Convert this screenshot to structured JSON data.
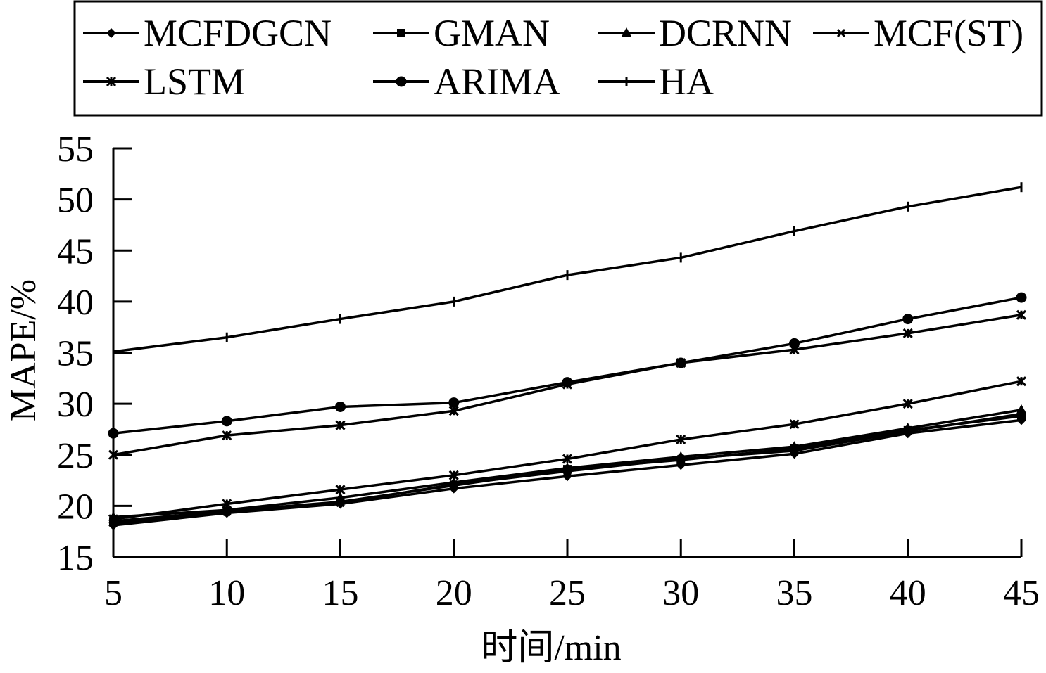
{
  "chart_data": {
    "type": "line",
    "xlabel": "时间/min",
    "ylabel": "MAPE/%",
    "x": [
      5,
      10,
      15,
      20,
      25,
      30,
      35,
      40,
      45
    ],
    "xlim": [
      5,
      45
    ],
    "ylim": [
      15,
      55
    ],
    "yticks": [
      15,
      20,
      25,
      30,
      35,
      40,
      45,
      50,
      55
    ],
    "grid": false,
    "legend_position": "top",
    "line_color": "#000000",
    "series": [
      {
        "name": "MCFDGCN",
        "marker": "diamond",
        "values": [
          18.1,
          19.3,
          20.2,
          21.7,
          22.9,
          24.0,
          25.1,
          27.1,
          28.4
        ]
      },
      {
        "name": "GMAN",
        "marker": "square",
        "values": [
          18.5,
          19.5,
          20.4,
          22.0,
          23.6,
          24.5,
          25.6,
          27.4,
          28.8
        ]
      },
      {
        "name": "DCRNN",
        "marker": "triangle",
        "values": [
          18.9,
          19.6,
          20.8,
          22.3,
          23.7,
          24.8,
          25.8,
          27.6,
          29.4
        ]
      },
      {
        "name": "MCF(ST)",
        "marker": "cross",
        "values": [
          18.3,
          19.4,
          20.3,
          22.1,
          23.4,
          24.6,
          25.4,
          27.3,
          29.0
        ]
      },
      {
        "name": "LSTM",
        "marker": "xstar",
        "values": [
          18.7,
          20.2,
          21.6,
          23.0,
          24.6,
          26.5,
          28.0,
          30.0,
          32.2
        ]
      },
      {
        "name": "ARIMA",
        "marker": "circle",
        "values": [
          27.1,
          28.3,
          29.7,
          30.1,
          32.1,
          34.0,
          35.9,
          38.3,
          40.4
        ]
      },
      {
        "name": "HA",
        "marker": "plus",
        "values": [
          35.1,
          36.5,
          38.3,
          40.0,
          42.6,
          44.3,
          46.9,
          49.3,
          51.2
        ]
      },
      {
        "name": "",
        "marker": "xstar",
        "values": [
          25.0,
          26.9,
          27.9,
          29.3,
          31.9,
          34.0,
          35.3,
          36.9,
          38.7
        ]
      }
    ]
  }
}
